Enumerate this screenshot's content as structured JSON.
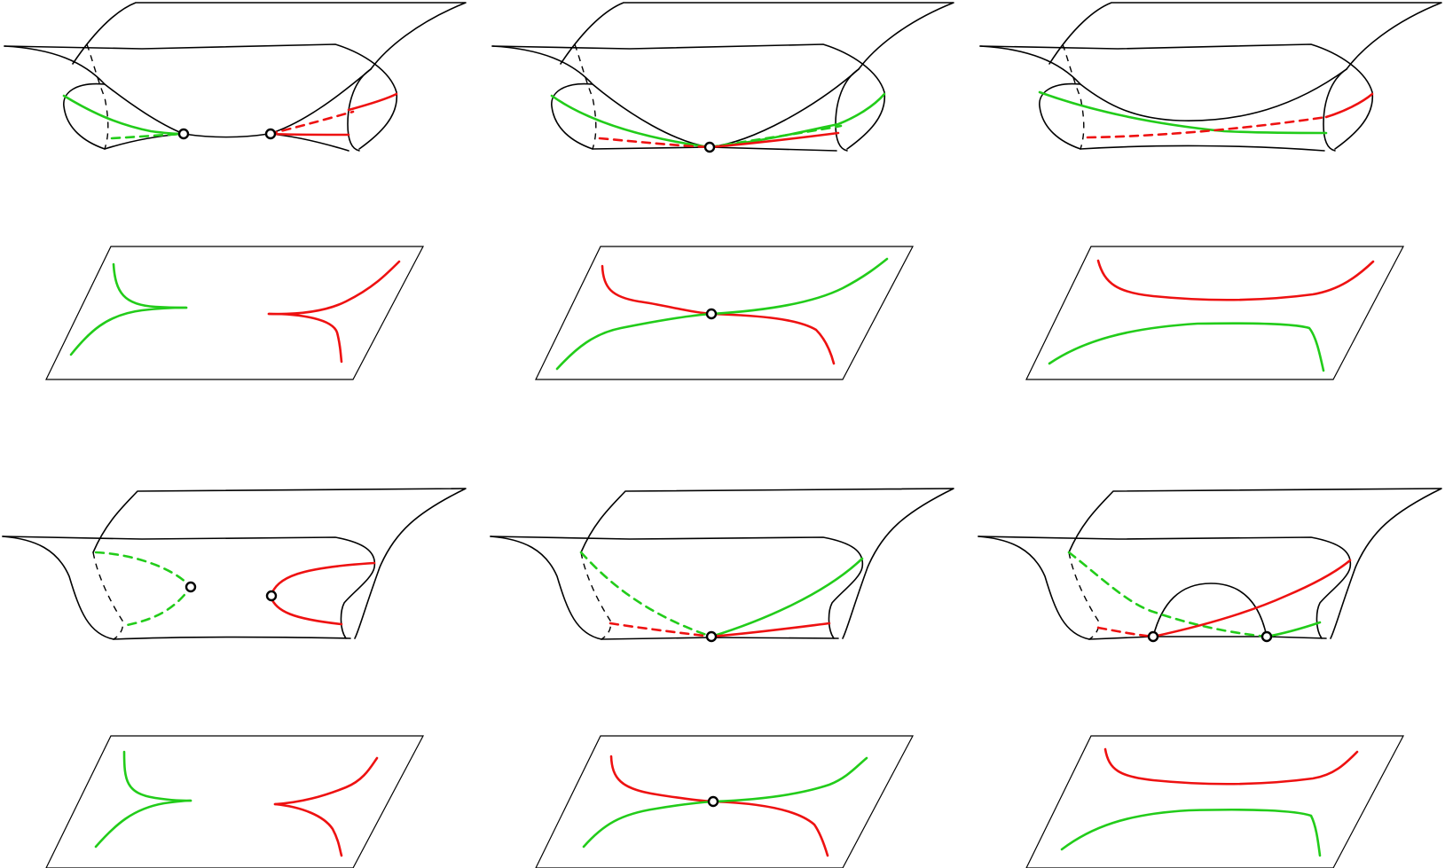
{
  "colors": {
    "green": "#22cc1a",
    "red": "#ee1111",
    "line": "#000000",
    "background": "#ffffff"
  },
  "panels": [
    {
      "row": 1,
      "col": 1,
      "kind": "surface",
      "marked_points": 2
    },
    {
      "row": 1,
      "col": 2,
      "kind": "surface",
      "marked_points": 1
    },
    {
      "row": 1,
      "col": 3,
      "kind": "surface",
      "marked_points": 0
    },
    {
      "row": 2,
      "col": 1,
      "kind": "plane",
      "marked_points": 0
    },
    {
      "row": 2,
      "col": 2,
      "kind": "plane",
      "marked_points": 1
    },
    {
      "row": 2,
      "col": 3,
      "kind": "plane",
      "marked_points": 0
    },
    {
      "row": 3,
      "col": 1,
      "kind": "surface",
      "marked_points": 2
    },
    {
      "row": 3,
      "col": 2,
      "kind": "surface",
      "marked_points": 1
    },
    {
      "row": 3,
      "col": 3,
      "kind": "surface",
      "marked_points": 2
    },
    {
      "row": 4,
      "col": 1,
      "kind": "plane",
      "marked_points": 0
    },
    {
      "row": 4,
      "col": 2,
      "kind": "plane",
      "marked_points": 1
    },
    {
      "row": 4,
      "col": 3,
      "kind": "plane",
      "marked_points": 0
    }
  ]
}
